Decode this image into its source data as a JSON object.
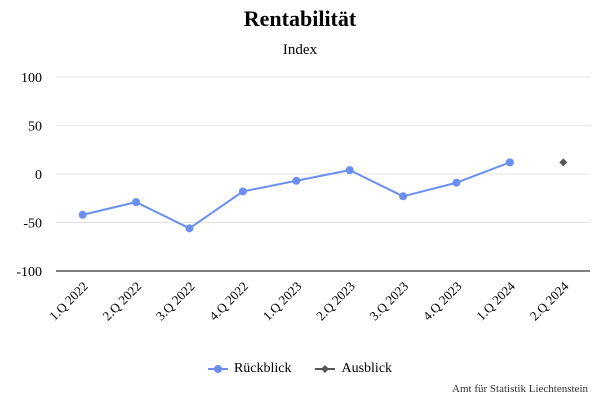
{
  "chart_data": {
    "type": "line",
    "title": "Rentabilität",
    "subtitle": "Index",
    "categories": [
      "1.Q 2022",
      "2.Q 2022",
      "3.Q 2022",
      "4.Q 2022",
      "1.Q 2023",
      "2.Q 2023",
      "3.Q 2023",
      "4.Q 2023",
      "1.Q 2024",
      "2.Q 2024"
    ],
    "ylim": [
      -100,
      100
    ],
    "yticks": [
      100,
      50,
      0,
      -50,
      -100
    ],
    "grid": true,
    "legend_position": "bottom",
    "series": [
      {
        "name": "Rückblick",
        "color": "#6b8ff0",
        "marker": "circle",
        "line": true,
        "values": [
          -42,
          -29,
          -56,
          -18,
          -7,
          4,
          -23,
          -9,
          12,
          null
        ]
      },
      {
        "name": "Ausblick",
        "color": "#555555",
        "marker": "diamond",
        "line": false,
        "values": [
          null,
          null,
          null,
          null,
          null,
          null,
          null,
          null,
          null,
          12
        ]
      }
    ]
  },
  "source": "Amt für Statistik Liechtenstein"
}
